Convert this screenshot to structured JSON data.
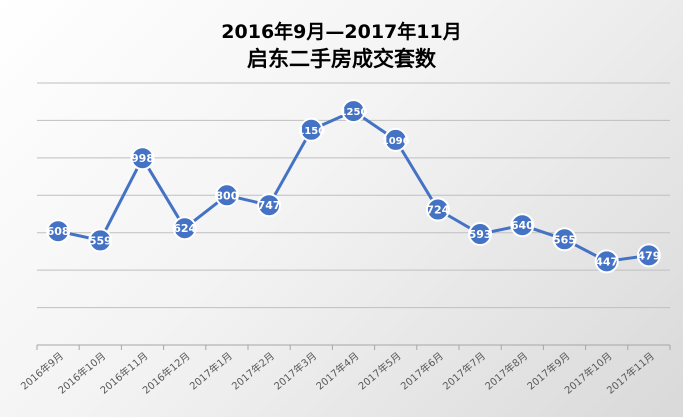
{
  "chart_data": {
    "type": "line",
    "title": "2016年9月—2017年11月",
    "subtitle": "启东二手房成交套数",
    "xlabel": "",
    "ylabel": "",
    "categories": [
      "2016年9月",
      "2016年10月",
      "2016年11月",
      "2016年12月",
      "2017年1月",
      "2017年2月",
      "2017年3月",
      "2017年4月",
      "2017年5月",
      "2017年6月",
      "2017年7月",
      "2017年8月",
      "2017年9月",
      "2017年10月",
      "2017年11月"
    ],
    "series": [
      {
        "name": "",
        "values": [
          608,
          559,
          998,
          624,
          800,
          747,
          1150,
          1250,
          1096,
          724,
          593,
          640,
          565,
          447,
          479
        ]
      }
    ],
    "ylim": [
      0,
      1400
    ],
    "grid": true,
    "legend": "none",
    "colors": {
      "line": "#4472C4",
      "marker_fill": "#4472C4",
      "marker_stroke": "#ffffff",
      "label": "#ffffff",
      "grid": "#bfbfbf",
      "tick": "#595959"
    }
  }
}
